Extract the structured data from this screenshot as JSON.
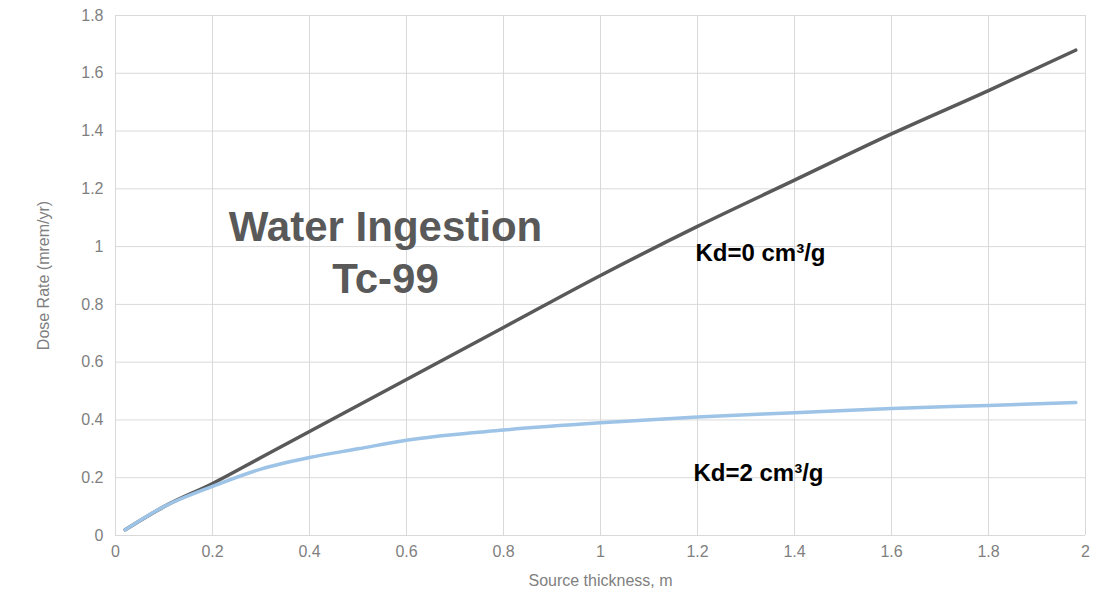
{
  "chart_data": {
    "type": "line",
    "title": "Water Ingestion\nTc-99",
    "x_label": "Source thickness, m",
    "y_label": "Dose Rate (mrem/yr)",
    "x": [
      0.02,
      0.1,
      0.2,
      0.3,
      0.4,
      0.5,
      0.6,
      0.8,
      1.0,
      1.2,
      1.4,
      1.6,
      1.8,
      1.98
    ],
    "series": [
      {
        "name": "Kd=0 cm³/g",
        "color": "#595959",
        "values": [
          0.02,
          0.1,
          0.18,
          0.27,
          0.36,
          0.45,
          0.54,
          0.72,
          0.9,
          1.07,
          1.23,
          1.39,
          1.54,
          1.68
        ]
      },
      {
        "name": "Kd=2 cm³/g",
        "color": "#9dc3e6",
        "values": [
          0.02,
          0.1,
          0.17,
          0.23,
          0.27,
          0.3,
          0.33,
          0.365,
          0.39,
          0.41,
          0.425,
          0.44,
          0.45,
          0.46
        ]
      }
    ],
    "xlim": [
      0,
      2
    ],
    "xticks": [
      0,
      0.2,
      0.4,
      0.6,
      0.8,
      1,
      1.2,
      1.4,
      1.6,
      1.8,
      2
    ],
    "ylim": [
      0,
      1.8
    ],
    "yticks": [
      0,
      0.2,
      0.4,
      0.6,
      0.8,
      1,
      1.2,
      1.4,
      1.6,
      1.8
    ],
    "grid": true
  }
}
